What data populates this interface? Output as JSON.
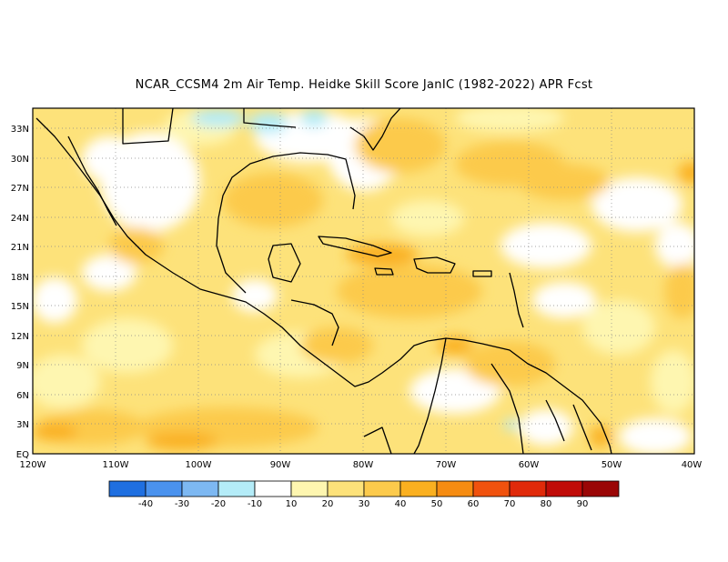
{
  "title": "NCAR_CCSM4  2m Air Temp. Heidke Skill Score JanIC (1982-2022) APR Fcst",
  "lat_ticks": [
    "33N",
    "30N",
    "27N",
    "24N",
    "21N",
    "18N",
    "15N",
    "12N",
    "9N",
    "6N",
    "3N",
    "EQ"
  ],
  "lon_ticks": [
    "120W",
    "110W",
    "100W",
    "90W",
    "80W",
    "70W",
    "60W",
    "50W",
    "40W"
  ],
  "colorbar": {
    "labels": [
      "-40",
      "-30",
      "-20",
      "-10",
      "10",
      "20",
      "30",
      "40",
      "50",
      "60",
      "70",
      "80",
      "90"
    ],
    "colors": [
      "#1f6fe0",
      "#4a92ee",
      "#7db8f2",
      "#b4ecf8",
      "#ffffff",
      "#fef6b0",
      "#fde27a",
      "#fcca4c",
      "#fab020",
      "#f68c12",
      "#f0520e",
      "#e02a0a",
      "#c00c08",
      "#9a0606"
    ]
  }
}
